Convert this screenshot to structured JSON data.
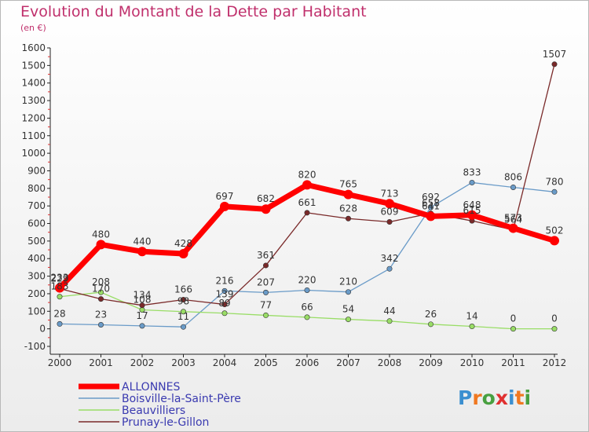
{
  "chart_data": {
    "type": "line",
    "title": "Evolution du Montant de la Dette par Habitant",
    "unit_label": "(en €)",
    "x": [
      "2000",
      "2001",
      "2002",
      "2003",
      "2004",
      "2005",
      "2006",
      "2007",
      "2008",
      "2009",
      "2010",
      "2011",
      "2012"
    ],
    "ylim": [
      -100,
      1600
    ],
    "yticks": [
      -100,
      0,
      100,
      200,
      300,
      400,
      500,
      600,
      700,
      800,
      900,
      1000,
      1100,
      1200,
      1300,
      1400,
      1500,
      1600
    ],
    "grid": false,
    "legend_position": "bottom-left",
    "series": [
      {
        "name": "ALLONNES",
        "color": "#ff0000",
        "width": 7,
        "values": [
          233,
          480,
          440,
          428,
          697,
          682,
          820,
          765,
          713,
          641,
          648,
          573,
          502
        ]
      },
      {
        "name": "Boisville-la-Saint-Père",
        "color": "#6a9bc8",
        "width": 1.3,
        "values": [
          28,
          23,
          17,
          11,
          216,
          207,
          220,
          210,
          342,
          692,
          833,
          806,
          780
        ]
      },
      {
        "name": "Beauvilliers",
        "color": "#99dd66",
        "width": 1.3,
        "values": [
          183,
          208,
          108,
          98,
          89,
          77,
          66,
          54,
          44,
          26,
          14,
          0,
          0
        ]
      },
      {
        "name": "Prunay-le-Gillon",
        "color": "#7a2a2a",
        "width": 1.3,
        "values": [
          229,
          170,
          134,
          166,
          139,
          361,
          661,
          628,
          609,
          658,
          615,
          564,
          1507
        ]
      }
    ]
  },
  "logo": {
    "letters": [
      "P",
      "r",
      "o",
      "x",
      "i",
      "t",
      "i"
    ],
    "colors": [
      "#3b8fd0",
      "#f07820",
      "#48a040",
      "#e03030",
      "#3b8fd0",
      "#f07820",
      "#48a040"
    ]
  }
}
